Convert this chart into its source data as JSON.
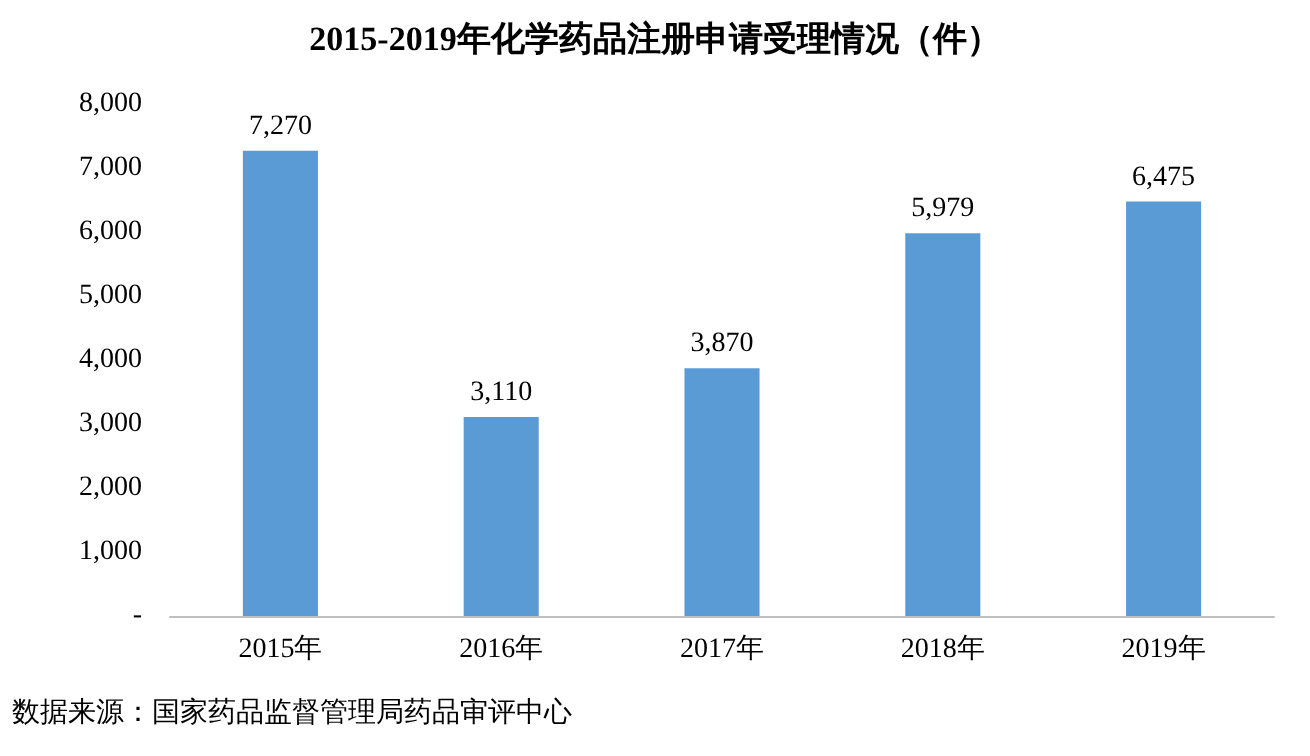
{
  "chart_data": {
    "type": "bar",
    "title": "2015-2019年化学药品注册申请受理情况（件）",
    "categories": [
      "2015年",
      "2016年",
      "2017年",
      "2018年",
      "2019年"
    ],
    "values": [
      7270,
      3110,
      3870,
      5979,
      6475
    ],
    "value_labels": [
      "7,270",
      "3,110",
      "3,870",
      "5,979",
      "6,475"
    ],
    "color": "#5b9bd5",
    "ylim": [
      0,
      8000
    ],
    "yticks": [
      {
        "value": 0,
        "label": "-"
      },
      {
        "value": 1000,
        "label": "1,000"
      },
      {
        "value": 2000,
        "label": "2,000"
      },
      {
        "value": 3000,
        "label": "3,000"
      },
      {
        "value": 4000,
        "label": "4,000"
      },
      {
        "value": 5000,
        "label": "5,000"
      },
      {
        "value": 6000,
        "label": "6,000"
      },
      {
        "value": 7000,
        "label": "7,000"
      },
      {
        "value": 8000,
        "label": "8,000"
      }
    ],
    "grid": false,
    "annotations": [
      "数据来源：国家药品监督管理局药品审评中心"
    ]
  }
}
